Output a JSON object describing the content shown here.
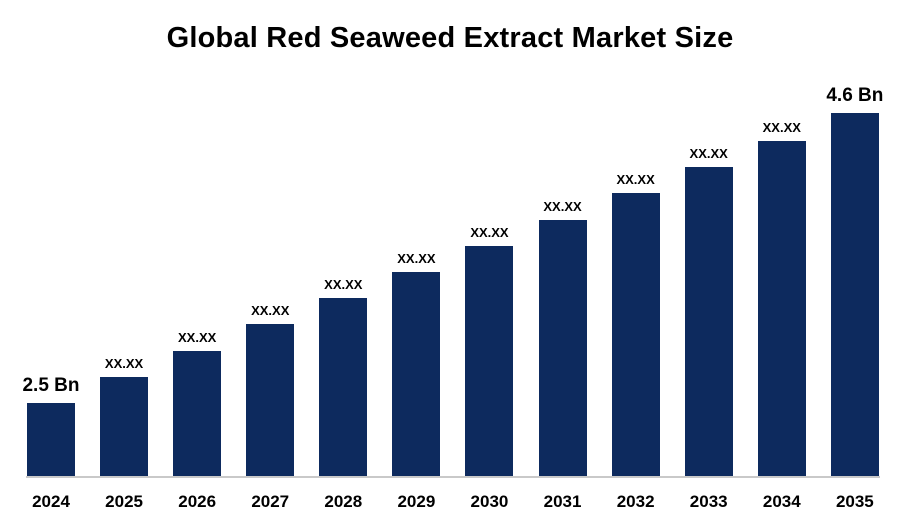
{
  "title": "Global Red Seaweed Extract Market Size",
  "chart_data": {
    "type": "bar",
    "title": "Global Red Seaweed Extract Market Size",
    "categories": [
      "2024",
      "2025",
      "2026",
      "2027",
      "2028",
      "2029",
      "2030",
      "2031",
      "2032",
      "2033",
      "2034",
      "2035"
    ],
    "values": [
      2.5,
      2.69,
      2.88,
      3.07,
      3.26,
      3.45,
      3.64,
      3.83,
      4.02,
      4.21,
      4.4,
      4.6
    ],
    "bar_labels": [
      "2.5 Bn",
      "XX.XX",
      "XX.XX",
      "XX.XX",
      "XX.XX",
      "XX.XX",
      "XX.XX",
      "XX.XX",
      "XX.XX",
      "XX.XX",
      "XX.XX",
      "4.6 Bn"
    ],
    "first_label": "2.5 Bn",
    "last_label": "4.6 Bn",
    "bar_color": "#0d2a5e",
    "baseline_color": "#c9c9c9",
    "ylim": [
      1.97,
      4.93
    ],
    "grid": false,
    "legend": false,
    "xlabel": "",
    "ylabel": ""
  }
}
